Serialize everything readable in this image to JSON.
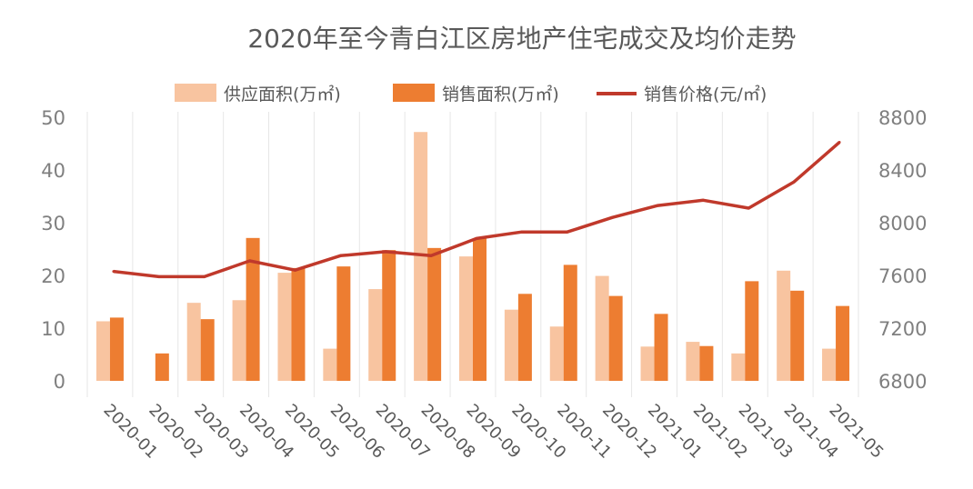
{
  "chart_data": {
    "type": "bar",
    "title": "2020年至今青白江区房地产住宅成交及均价走势",
    "categories": [
      "2020-01",
      "2020-02",
      "2020-03",
      "2020-04",
      "2020-05",
      "2020-06",
      "2020-07",
      "2020-08",
      "2020-09",
      "2020-10",
      "2020-11",
      "2020-12",
      "2021-01",
      "2021-02",
      "2021-03",
      "2021-04",
      "2021-05"
    ],
    "series": [
      {
        "name": "供应面积(万㎡)",
        "kind": "bar",
        "axis": "left",
        "color": "#f8c4a0",
        "values": [
          11.3,
          0,
          14.8,
          15.3,
          20.5,
          6.1,
          17.4,
          47.2,
          23.6,
          13.5,
          10.3,
          19.9,
          6.5,
          7.4,
          5.2,
          20.9,
          6.1
        ]
      },
      {
        "name": "销售面积(万㎡)",
        "kind": "bar",
        "axis": "left",
        "color": "#ed7d31",
        "values": [
          12.0,
          5.2,
          11.7,
          27.1,
          21.4,
          21.7,
          24.8,
          25.2,
          27.0,
          16.5,
          22.0,
          16.1,
          12.7,
          6.6,
          18.9,
          17.1,
          14.2
        ]
      },
      {
        "name": "销售价格(元/㎡)",
        "kind": "line",
        "axis": "right",
        "color": "#c0392b",
        "values": [
          7630,
          7590,
          7590,
          7710,
          7640,
          7750,
          7780,
          7750,
          7880,
          7930,
          7930,
          8040,
          8130,
          8170,
          8110,
          8310,
          8610
        ]
      }
    ],
    "y_left": {
      "min": 0,
      "max": 50,
      "ticks": [
        "0",
        "10",
        "20",
        "30",
        "40",
        "50"
      ]
    },
    "y_right": {
      "min": 6800,
      "max": 8800,
      "ticks": [
        "6800",
        "7200",
        "7600",
        "8000",
        "8400",
        "8800"
      ]
    },
    "legend": "top-center",
    "grid": "vertical"
  }
}
